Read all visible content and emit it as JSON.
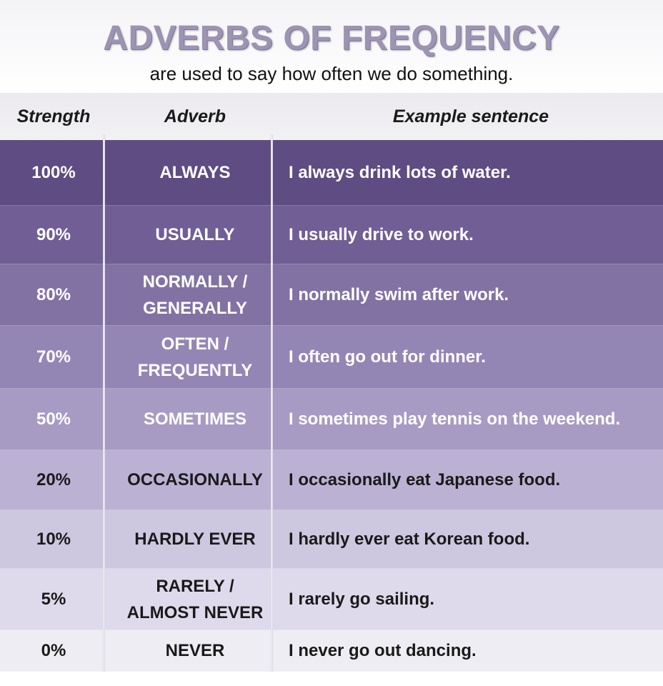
{
  "title": "ADVERBS OF FREQUENCY",
  "subtitle": "are used to say how often we do something.",
  "headers": {
    "strength": "Strength",
    "adverb": "Adverb",
    "example": "Example sentence"
  },
  "rows": [
    {
      "strength": "100%",
      "adverb": "ALWAYS",
      "example": "I always drink lots of water.",
      "bg": "#5e4c82",
      "fg": "#ffffff"
    },
    {
      "strength": "90%",
      "adverb": "USUALLY",
      "example": "I usually drive to work.",
      "bg": "#705e95",
      "fg": "#ffffff"
    },
    {
      "strength": "80%",
      "adverb": "NORMALLY /\nGENERALLY",
      "example": "I normally swim after work.",
      "bg": "#8272a4",
      "fg": "#ffffff"
    },
    {
      "strength": "70%",
      "adverb": "OFTEN /\nFREQUENTLY",
      "example": "I often go out for dinner.",
      "bg": "#9486b4",
      "fg": "#ffffff"
    },
    {
      "strength": "50%",
      "adverb": "SOMETIMES",
      "example": "I sometimes play tennis on the weekend.",
      "bg": "#a79bc3",
      "fg": "#ffffff"
    },
    {
      "strength": "20%",
      "adverb": "OCCASIONALLY",
      "example": "I occasionally  eat Japanese food.",
      "bg": "#bbb2d3",
      "fg": "#1a1a1a"
    },
    {
      "strength": "10%",
      "adverb": "HARDLY EVER",
      "example": "I hardly ever eat Korean food.",
      "bg": "#cec7e0",
      "fg": "#1a1a1a"
    },
    {
      "strength": "5%",
      "adverb": "RARELY /\nALMOST NEVER",
      "example": "I rarely go sailing.",
      "bg": "#dfdaeb",
      "fg": "#1a1a1a"
    },
    {
      "strength": "0%",
      "adverb": "NEVER",
      "example": "I never go out dancing.",
      "bg": "#efedf4",
      "fg": "#1a1a1a"
    }
  ]
}
